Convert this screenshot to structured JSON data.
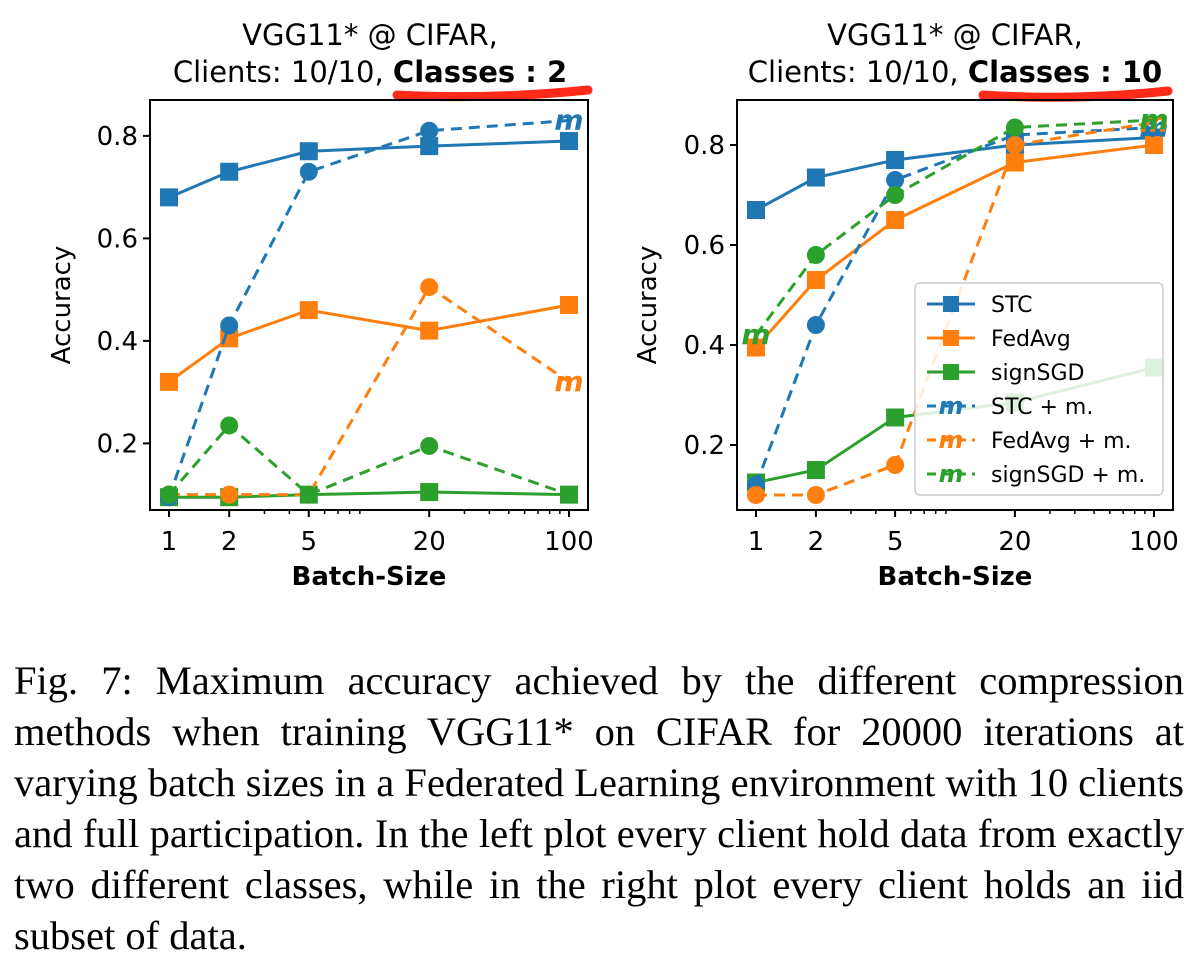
{
  "caption": "Fig. 7: Maximum accuracy achieved by the different compression methods when training VGG11* on CIFAR for 20000 iterations at varying batch sizes in a Federated Learning environment with 10 clients and full participation. In the left plot every client hold data from exactly two different classes, while in the right plot every client holds an iid subset of data.",
  "colors": {
    "STC": "#1f77b4",
    "FedAvg": "#ff7f0e",
    "signSGD": "#2ca02c",
    "highlight": "#ff2a1a"
  },
  "chart_data": [
    {
      "type": "line",
      "title_line1": "VGG11* @ CIFAR,",
      "title_prefix": "Clients: 10/10, ",
      "title_bold": "Classes : 2",
      "xlabel": "Batch-Size",
      "ylabel": "Accuracy",
      "xscale": "log",
      "x": [
        1,
        2,
        5,
        20,
        100
      ],
      "xticks": [
        "1",
        "2",
        "5",
        "20",
        "100"
      ],
      "yticks": [
        "0.2",
        "0.4",
        "0.6",
        "0.8"
      ],
      "ylim": [
        0.07,
        0.87
      ],
      "legend": "none",
      "series": [
        {
          "name": "STC",
          "style": "solid",
          "marker": "square",
          "values": [
            0.68,
            0.73,
            0.77,
            0.78,
            0.79
          ]
        },
        {
          "name": "FedAvg",
          "style": "solid",
          "marker": "square",
          "values": [
            0.32,
            0.405,
            0.46,
            0.42,
            0.47
          ]
        },
        {
          "name": "signSGD",
          "style": "solid",
          "marker": "square",
          "values": [
            0.095,
            0.095,
            0.1,
            0.105,
            0.1
          ]
        },
        {
          "name": "STC + m.",
          "style": "dashed",
          "marker": "circle",
          "end_marker": "m",
          "values": [
            0.095,
            0.43,
            0.73,
            0.81,
            0.83
          ]
        },
        {
          "name": "FedAvg + m.",
          "style": "dashed",
          "marker": "circle",
          "end_marker": "m",
          "values": [
            0.1,
            0.1,
            0.1,
            0.505,
            0.32
          ]
        },
        {
          "name": "signSGD + m.",
          "style": "dashed",
          "marker": "circle",
          "values": [
            0.1,
            0.235,
            0.1,
            0.195,
            0.1
          ]
        }
      ]
    },
    {
      "type": "line",
      "title_line1": "VGG11* @ CIFAR,",
      "title_prefix": "Clients: 10/10, ",
      "title_bold": "Classes : 10",
      "xlabel": "Batch-Size",
      "ylabel": "Accuracy",
      "xscale": "log",
      "x": [
        1,
        2,
        5,
        20,
        100
      ],
      "xticks": [
        "1",
        "2",
        "5",
        "20",
        "100"
      ],
      "yticks": [
        "0.2",
        "0.4",
        "0.6",
        "0.8"
      ],
      "ylim": [
        0.07,
        0.89
      ],
      "legend": "center-right",
      "series": [
        {
          "name": "STC",
          "style": "solid",
          "marker": "square",
          "values": [
            0.67,
            0.735,
            0.77,
            0.8,
            0.815
          ]
        },
        {
          "name": "FedAvg",
          "style": "solid",
          "marker": "square",
          "values": [
            0.395,
            0.53,
            0.65,
            0.765,
            0.8
          ]
        },
        {
          "name": "signSGD",
          "style": "solid",
          "marker": "square",
          "values": [
            0.125,
            0.15,
            0.255,
            0.285,
            0.355
          ]
        },
        {
          "name": "STC + m.",
          "style": "dashed",
          "marker": "circle",
          "end_marker": "m",
          "values": [
            0.12,
            0.44,
            0.73,
            0.82,
            0.835
          ]
        },
        {
          "name": "FedAvg + m.",
          "style": "dashed",
          "marker": "circle",
          "end_marker": "m",
          "values": [
            0.1,
            0.1,
            0.16,
            0.8,
            0.845
          ]
        },
        {
          "name": "signSGD + m.",
          "style": "dashed",
          "marker": "circle",
          "start_marker": "m",
          "end_marker": "m",
          "values": [
            0.42,
            0.58,
            0.7,
            0.835,
            0.85
          ]
        }
      ]
    }
  ]
}
